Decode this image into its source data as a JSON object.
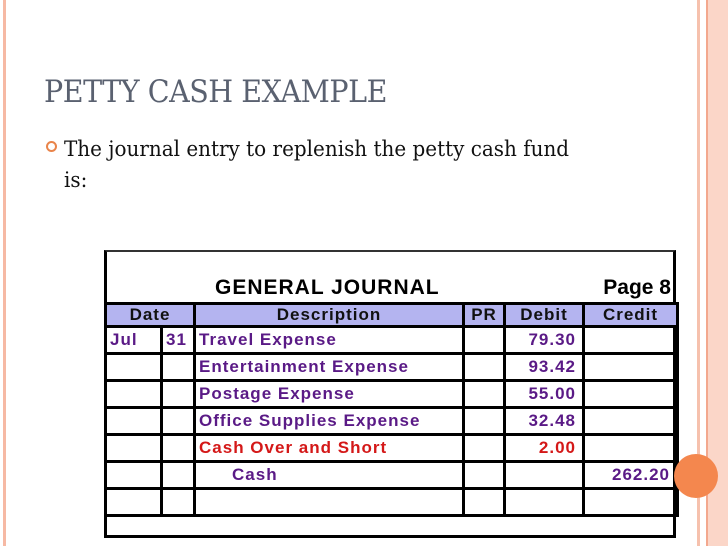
{
  "slide": {
    "title": "PETTY CASH EXAMPLE",
    "bullet": "The journal entry to replenish the petty cash fund is:",
    "colors": {
      "accent": "#f4874e",
      "border": "#f6b9a4",
      "title": "#5a6170"
    }
  },
  "journal": {
    "title": "GENERAL JOURNAL",
    "page": "Page 8",
    "header_color": "#b4b4f0",
    "columns": [
      "Date",
      "Description",
      "PR",
      "Debit",
      "Credit"
    ],
    "rows": [
      {
        "month": "Jul",
        "day": "31",
        "description": "Travel Expense",
        "pr": "",
        "debit": "79.30",
        "credit": ""
      },
      {
        "month": "",
        "day": "",
        "description": "Entertainment Expense",
        "pr": "",
        "debit": "93.42",
        "credit": ""
      },
      {
        "month": "",
        "day": "",
        "description": "Postage Expense",
        "pr": "",
        "debit": "55.00",
        "credit": ""
      },
      {
        "month": "",
        "day": "",
        "description": "Office Supplies Expense",
        "pr": "",
        "debit": "32.48",
        "credit": ""
      },
      {
        "month": "",
        "day": "",
        "description": "Cash Over and Short",
        "pr": "",
        "debit": "2.00",
        "credit": "",
        "color": "#d41818"
      },
      {
        "month": "",
        "day": "",
        "description": "Cash",
        "pr": "",
        "debit": "",
        "credit": "262.20"
      },
      {
        "month": "",
        "day": "",
        "description": "",
        "pr": "",
        "debit": "",
        "credit": ""
      }
    ]
  }
}
